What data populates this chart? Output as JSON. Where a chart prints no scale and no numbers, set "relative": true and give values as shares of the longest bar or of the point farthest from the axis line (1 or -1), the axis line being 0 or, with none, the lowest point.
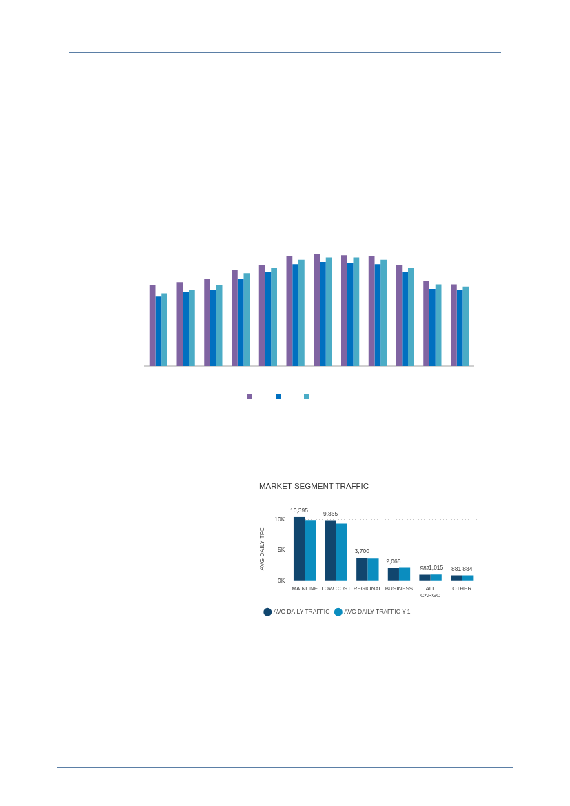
{
  "chart_data": [
    {
      "type": "bar",
      "relative": true,
      "categories": [
        null,
        null,
        null,
        null,
        null,
        null,
        null,
        null,
        null,
        null,
        null,
        null
      ],
      "series": [
        {
          "color": "#8064a2",
          "values": [
            0.72,
            0.75,
            0.78,
            0.86,
            0.9,
            0.98,
            1,
            0.99,
            0.98,
            0.9,
            0.76,
            0.73
          ]
        },
        {
          "color": "#0070c0",
          "values": [
            0.62,
            0.66,
            0.68,
            0.78,
            0.84,
            0.91,
            0.93,
            0.92,
            0.91,
            0.84,
            0.69,
            0.68
          ]
        },
        {
          "color": "#4bacc6",
          "values": [
            0.65,
            0.68,
            0.72,
            0.83,
            0.88,
            0.95,
            0.97,
            0.97,
            0.95,
            0.88,
            0.73,
            0.71
          ]
        }
      ]
    },
    {
      "type": "bar",
      "title": "MARKET SEGMENT TRAFFIC",
      "ylabel": "AVG DAILY TFC",
      "categories": [
        "MAINLINE",
        "LOW COST",
        "REGIONAL",
        "BUSINESS",
        "ALL CARGO",
        "OTHER"
      ],
      "series": [
        {
          "name": "AVG DAILY TRAFFIC",
          "color": "#11466e",
          "values": [
            10395,
            9865,
            3700,
            2065,
            987,
            881
          ],
          "value_labels": [
            "10,395",
            "9,865",
            "3,700",
            "2,065",
            "987",
            "881"
          ]
        },
        {
          "name": "AVG DAILY TRAFFIC Y-1",
          "color": "#0b8dbf",
          "values": [
            9900,
            9300,
            3600,
            2100,
            1015,
            884
          ],
          "value_labels": [
            null,
            null,
            null,
            null,
            "1,015",
            "884"
          ]
        }
      ],
      "ylim": [
        0,
        10395
      ],
      "yticks": [
        {
          "value": 0,
          "label": "0K"
        },
        {
          "value": 5000,
          "label": "5K"
        },
        {
          "value": 10000,
          "label": "10K"
        }
      ],
      "grid": "y",
      "legend": "bottom left"
    }
  ]
}
